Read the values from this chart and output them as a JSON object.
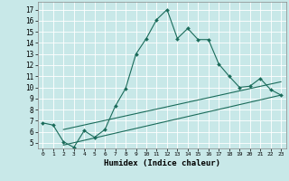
{
  "xlabel": "Humidex (Indice chaleur)",
  "background_color": "#c8e8e8",
  "grid_color": "#ffffff",
  "line_color": "#1a6b5a",
  "xlim": [
    -0.5,
    23.5
  ],
  "ylim": [
    4.5,
    17.7
  ],
  "xticks": [
    0,
    1,
    2,
    3,
    4,
    5,
    6,
    7,
    8,
    9,
    10,
    11,
    12,
    13,
    14,
    15,
    16,
    17,
    18,
    19,
    20,
    21,
    22,
    23
  ],
  "yticks": [
    5,
    6,
    7,
    8,
    9,
    10,
    11,
    12,
    13,
    14,
    15,
    16,
    17
  ],
  "main_line": {
    "x": [
      0,
      1,
      2,
      3,
      4,
      5,
      6,
      7,
      8,
      9,
      10,
      11,
      12,
      13,
      14,
      15,
      16,
      17,
      18,
      19,
      20,
      21,
      22,
      23
    ],
    "y": [
      6.8,
      6.6,
      5.1,
      4.6,
      6.1,
      5.5,
      6.2,
      8.3,
      9.9,
      13.0,
      14.4,
      16.1,
      17.0,
      14.4,
      15.3,
      14.3,
      14.3,
      12.1,
      11.0,
      10.0,
      10.1,
      10.8,
      9.8,
      9.3
    ]
  },
  "lower_line": {
    "x": [
      2,
      23
    ],
    "y": [
      4.8,
      9.3
    ]
  },
  "upper_line": {
    "x": [
      2,
      23
    ],
    "y": [
      6.2,
      10.5
    ]
  }
}
